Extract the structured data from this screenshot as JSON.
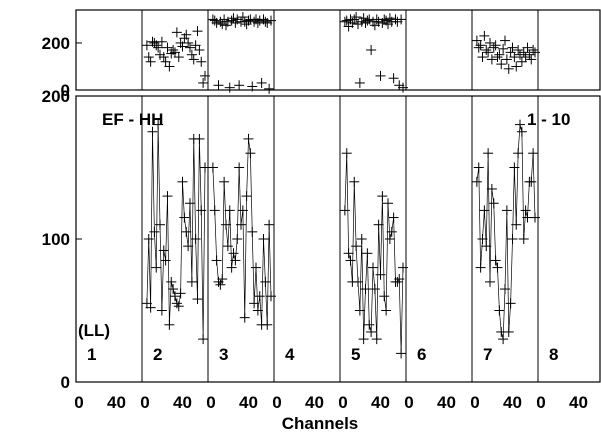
{
  "chart_data": {
    "type": "scatter",
    "title": "",
    "xlabel": "Channels",
    "annotations": {
      "correlation": "EF - HH",
      "range": "1 - 10",
      "reference": "(LL)"
    },
    "panels": [
      {
        "label": "1"
      },
      {
        "label": "2"
      },
      {
        "label": "3"
      },
      {
        "label": "4"
      },
      {
        "label": "5"
      },
      {
        "label": "6"
      },
      {
        "label": "7"
      },
      {
        "label": "8"
      }
    ],
    "x_per_panel": {
      "range": [
        0,
        64
      ],
      "ticks": [
        "0",
        "40"
      ]
    },
    "top_plot": {
      "ylim": [
        0,
        340
      ],
      "ticks": [
        {
          "v": 0,
          "label": "0"
        },
        {
          "v": 200,
          "label": "200"
        }
      ],
      "series": [
        {
          "panel": 2,
          "points": [
            [
              2,
              190
            ],
            [
              4,
              140
            ],
            [
              6,
              120
            ],
            [
              8,
              205
            ],
            [
              10,
              200
            ],
            [
              12,
              190
            ],
            [
              14,
              180
            ],
            [
              16,
              150
            ],
            [
              18,
              205
            ],
            [
              20,
              140
            ],
            [
              22,
              120
            ],
            [
              24,
              180
            ],
            [
              26,
              100
            ],
            [
              28,
              155
            ],
            [
              30,
              170
            ],
            [
              32,
              160
            ],
            [
              34,
              245
            ],
            [
              36,
              140
            ],
            [
              38,
              200
            ],
            [
              40,
              185
            ],
            [
              42,
              220
            ],
            [
              44,
              235
            ],
            [
              46,
              200
            ],
            [
              48,
              180
            ],
            [
              50,
              150
            ],
            [
              52,
              130
            ],
            [
              54,
              190
            ],
            [
              56,
              250
            ],
            [
              58,
              170
            ],
            [
              60,
              120
            ],
            [
              62,
              30
            ],
            [
              64,
              60
            ]
          ]
        },
        {
          "panel": 3,
          "points": [
            [
              2,
              300
            ],
            [
              4,
              295
            ],
            [
              6,
              285
            ],
            [
              8,
              20
            ],
            [
              10,
              290
            ],
            [
              12,
              280
            ],
            [
              14,
              300
            ],
            [
              16,
              275
            ],
            [
              18,
              290
            ],
            [
              20,
              10
            ],
            [
              22,
              295
            ],
            [
              24,
              305
            ],
            [
              26,
              285
            ],
            [
              28,
              300
            ],
            [
              30,
              20
            ],
            [
              32,
              290
            ],
            [
              34,
              310
            ],
            [
              36,
              290
            ],
            [
              38,
              280
            ],
            [
              40,
              295
            ],
            [
              42,
              300
            ],
            [
              44,
              15
            ],
            [
              46,
              290
            ],
            [
              48,
              300
            ],
            [
              50,
              285
            ],
            [
              52,
              295
            ],
            [
              54,
              30
            ],
            [
              56,
              300
            ],
            [
              58,
              290
            ],
            [
              60,
              285
            ],
            [
              62,
              5
            ],
            [
              64,
              295
            ]
          ]
        },
        {
          "panel": 5,
          "points": [
            [
              2,
              290
            ],
            [
              4,
              295
            ],
            [
              6,
              270
            ],
            [
              8,
              300
            ],
            [
              10,
              285
            ],
            [
              12,
              300
            ],
            [
              14,
              310
            ],
            [
              16,
              280
            ],
            [
              18,
              30
            ],
            [
              20,
              290
            ],
            [
              22,
              305
            ],
            [
              24,
              285
            ],
            [
              26,
              295
            ],
            [
              28,
              300
            ],
            [
              30,
              170
            ],
            [
              32,
              290
            ],
            [
              34,
              275
            ],
            [
              36,
              300
            ],
            [
              38,
              290
            ],
            [
              40,
              60
            ],
            [
              42,
              285
            ],
            [
              44,
              300
            ],
            [
              46,
              295
            ],
            [
              48,
              280
            ],
            [
              50,
              305
            ],
            [
              52,
              290
            ],
            [
              54,
              50
            ],
            [
              56,
              300
            ],
            [
              58,
              290
            ],
            [
              60,
              20
            ],
            [
              62,
              300
            ],
            [
              64,
              10
            ]
          ]
        },
        {
          "panel": 7,
          "points": [
            [
              2,
              210
            ],
            [
              4,
              180
            ],
            [
              6,
              190
            ],
            [
              8,
              140
            ],
            [
              10,
              230
            ],
            [
              12,
              170
            ],
            [
              14,
              160
            ],
            [
              16,
              200
            ],
            [
              18,
              130
            ],
            [
              20,
              180
            ],
            [
              22,
              190
            ],
            [
              24,
              140
            ],
            [
              26,
              150
            ],
            [
              28,
              110
            ],
            [
              30,
              175
            ],
            [
              32,
              210
            ],
            [
              34,
              130
            ],
            [
              36,
              90
            ],
            [
              38,
              160
            ],
            [
              40,
              180
            ],
            [
              42,
              140
            ],
            [
              44,
              100
            ],
            [
              46,
              170
            ],
            [
              48,
              150
            ],
            [
              50,
              120
            ],
            [
              52,
              160
            ],
            [
              54,
              140
            ],
            [
              56,
              180
            ],
            [
              58,
              150
            ],
            [
              60,
              130
            ],
            [
              62,
              170
            ],
            [
              64,
              160
            ]
          ]
        }
      ]
    },
    "bottom_plot": {
      "ylim": [
        0,
        200
      ],
      "ticks": [
        {
          "v": 0,
          "label": "0"
        },
        {
          "v": 100,
          "label": "100"
        },
        {
          "v": 200,
          "label": "200"
        }
      ],
      "series": [
        {
          "panel": 2,
          "points": [
            [
              2,
              55
            ],
            [
              4,
              100
            ],
            [
              6,
              52
            ],
            [
              8,
              175
            ],
            [
              10,
              105
            ],
            [
              12,
              80
            ],
            [
              14,
              180
            ],
            [
              16,
              110
            ],
            [
              18,
              50
            ],
            [
              20,
              92
            ],
            [
              22,
              85
            ],
            [
              24,
              130
            ],
            [
              26,
              40
            ],
            [
              28,
              70
            ],
            [
              30,
              65
            ],
            [
              32,
              60
            ],
            [
              34,
              55
            ],
            [
              36,
              53
            ],
            [
              38,
              62
            ],
            [
              40,
              140
            ],
            [
              42,
              115
            ],
            [
              44,
              105
            ],
            [
              46,
              95
            ],
            [
              48,
              125
            ],
            [
              50,
              70
            ],
            [
              52,
              170
            ],
            [
              54,
              100
            ],
            [
              56,
              58
            ],
            [
              58,
              170
            ],
            [
              60,
              120
            ],
            [
              62,
              30
            ],
            [
              64,
              150
            ]
          ]
        },
        {
          "panel": 3,
          "points": [
            [
              2,
              150
            ],
            [
              4,
              120
            ],
            [
              6,
              85
            ],
            [
              8,
              70
            ],
            [
              10,
              68
            ],
            [
              12,
              72
            ],
            [
              14,
              140
            ],
            [
              16,
              110
            ],
            [
              18,
              95
            ],
            [
              20,
              120
            ],
            [
              22,
              80
            ],
            [
              24,
              90
            ],
            [
              26,
              85
            ],
            [
              28,
              100
            ],
            [
              30,
              150
            ],
            [
              32,
              110
            ],
            [
              34,
              120
            ],
            [
              36,
              45
            ],
            [
              38,
              130
            ],
            [
              40,
              170
            ],
            [
              42,
              160
            ],
            [
              44,
              105
            ],
            [
              46,
              55
            ],
            [
              48,
              80
            ],
            [
              50,
              50
            ],
            [
              52,
              60
            ],
            [
              54,
              40
            ],
            [
              56,
              100
            ],
            [
              58,
              70
            ],
            [
              60,
              40
            ],
            [
              62,
              110
            ],
            [
              64,
              60
            ]
          ]
        },
        {
          "panel": 5,
          "points": [
            [
              2,
              120
            ],
            [
              4,
              160
            ],
            [
              6,
              90
            ],
            [
              8,
              85
            ],
            [
              10,
              70
            ],
            [
              12,
              140
            ],
            [
              14,
              95
            ],
            [
              16,
              70
            ],
            [
              18,
              50
            ],
            [
              20,
              100
            ],
            [
              22,
              30
            ],
            [
              24,
              65
            ],
            [
              26,
              90
            ],
            [
              28,
              40
            ],
            [
              30,
              35
            ],
            [
              32,
              80
            ],
            [
              34,
              65
            ],
            [
              36,
              30
            ],
            [
              38,
              110
            ],
            [
              40,
              75
            ],
            [
              42,
              130
            ],
            [
              44,
              60
            ],
            [
              46,
              50
            ],
            [
              48,
              125
            ],
            [
              50,
              100
            ],
            [
              52,
              105
            ],
            [
              54,
              115
            ],
            [
              56,
              70
            ],
            [
              58,
              70
            ],
            [
              60,
              72
            ],
            [
              62,
              20
            ],
            [
              64,
              80
            ]
          ]
        },
        {
          "panel": 7,
          "points": [
            [
              2,
              140
            ],
            [
              4,
              150
            ],
            [
              6,
              80
            ],
            [
              8,
              100
            ],
            [
              10,
              120
            ],
            [
              12,
              95
            ],
            [
              14,
              160
            ],
            [
              16,
              70
            ],
            [
              18,
              135
            ],
            [
              20,
              125
            ],
            [
              22,
              85
            ],
            [
              24,
              80
            ],
            [
              26,
              50
            ],
            [
              28,
              35
            ],
            [
              30,
              30
            ],
            [
              32,
              65
            ],
            [
              34,
              120
            ],
            [
              36,
              35
            ],
            [
              38,
              55
            ],
            [
              40,
              100
            ],
            [
              42,
              150
            ],
            [
              44,
              110
            ],
            [
              46,
              160
            ],
            [
              48,
              180
            ],
            [
              50,
              175
            ],
            [
              52,
              100
            ],
            [
              54,
              120
            ],
            [
              56,
              115
            ],
            [
              58,
              140
            ],
            [
              60,
              140
            ],
            [
              62,
              160
            ],
            [
              64,
              115
            ]
          ]
        }
      ]
    }
  }
}
